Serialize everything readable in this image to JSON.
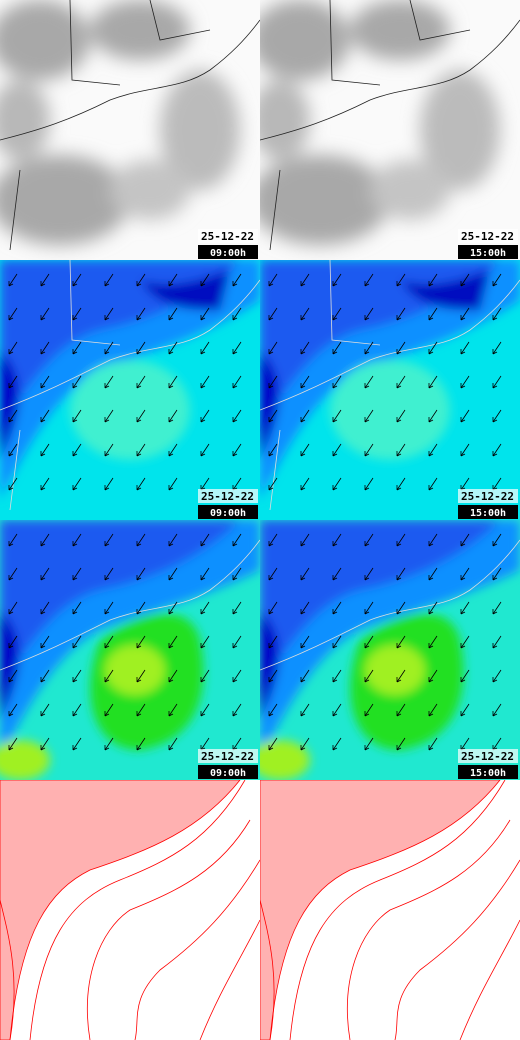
{
  "panels": [
    {
      "date": "25-12-22",
      "time": "09:00h"
    },
    {
      "date": "25-12-22",
      "time": "15:00h"
    },
    {
      "date": "25-12-22",
      "time": "09:00h"
    },
    {
      "date": "25-12-22",
      "time": "15:00h"
    },
    {
      "date": "25-12-22",
      "time": "09:00h"
    },
    {
      "date": "25-12-22",
      "time": "15:00h"
    }
  ]
}
